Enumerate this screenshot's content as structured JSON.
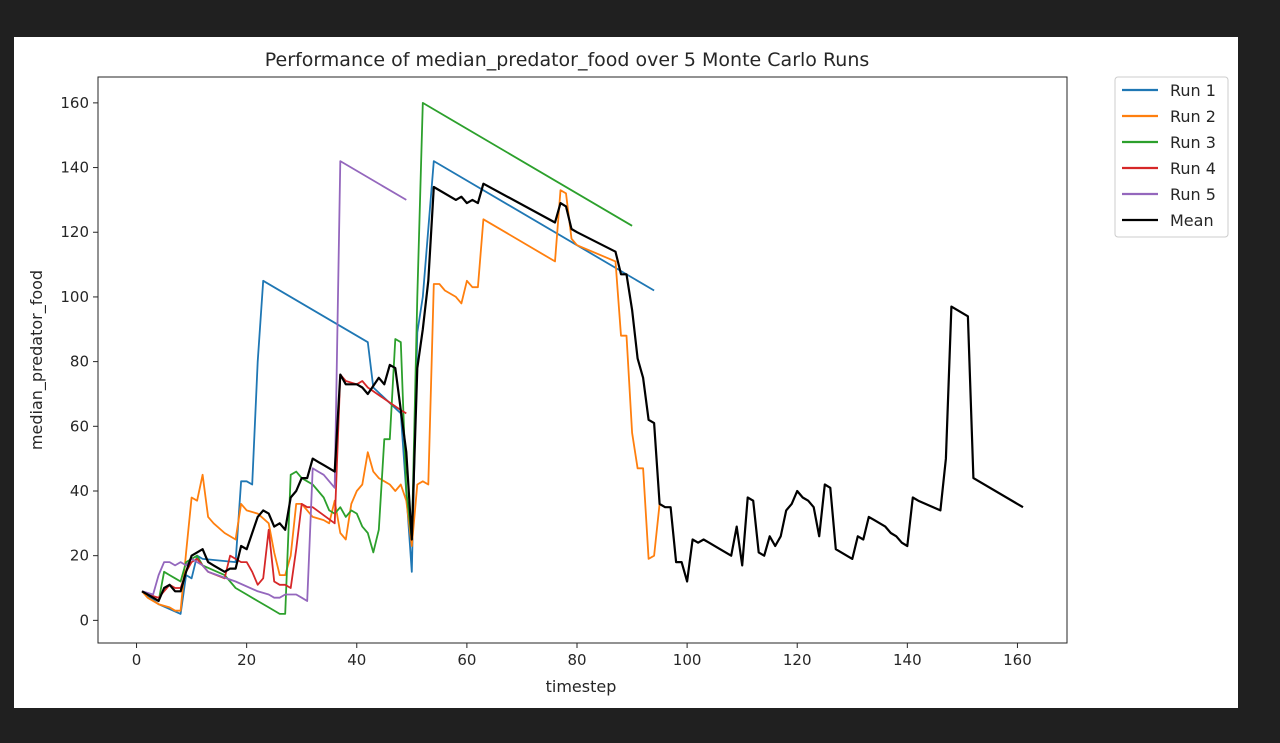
{
  "chart_data": {
    "type": "line",
    "title": "Performance of median_predator_food over 5 Monte Carlo Runs",
    "xlabel": "timestep",
    "ylabel": "median_predator_food",
    "xlim": [
      -7,
      169
    ],
    "ylim": [
      -7,
      168
    ],
    "xticks": [
      0,
      20,
      40,
      60,
      80,
      100,
      120,
      140,
      160
    ],
    "yticks": [
      0,
      20,
      40,
      60,
      80,
      100,
      120,
      140,
      160
    ],
    "legend_position": "outside-top-right",
    "series": [
      {
        "name": "Run 1",
        "color": "#1f77b4",
        "x": [
          1,
          4,
          8,
          9,
          10,
          11,
          12,
          18,
          19,
          20,
          21,
          22,
          23,
          42,
          43,
          48,
          50,
          51,
          52,
          54,
          94
        ],
        "y": [
          9,
          5,
          2,
          14,
          13,
          20,
          19,
          18,
          43,
          43,
          42,
          80,
          105,
          86,
          72,
          64,
          15,
          89,
          100,
          142,
          102
        ]
      },
      {
        "name": "Run 2",
        "color": "#ff7f0e",
        "x": [
          1,
          2,
          4,
          6,
          7,
          8,
          9,
          10,
          11,
          12,
          13,
          14,
          16,
          18,
          19,
          20,
          22,
          24,
          25,
          26,
          27,
          28,
          29,
          30,
          32,
          34,
          35,
          36,
          37,
          38,
          39,
          40,
          41,
          42,
          43,
          44,
          45,
          46,
          47,
          48,
          49,
          50,
          51,
          52,
          53,
          54,
          55,
          56,
          58,
          59,
          60,
          61,
          62,
          63,
          76,
          77,
          78,
          79,
          80,
          87,
          88,
          89,
          90,
          91,
          92,
          93,
          94,
          95
        ],
        "y": [
          9,
          7,
          5,
          4,
          3,
          3,
          21,
          38,
          37,
          45,
          32,
          30,
          27,
          25,
          36,
          34,
          33,
          30,
          21,
          14,
          14,
          20,
          36,
          36,
          32,
          31,
          30,
          37,
          27,
          25,
          36,
          40,
          42,
          52,
          46,
          44,
          43,
          42,
          40,
          42,
          37,
          23,
          42,
          43,
          42,
          104,
          104,
          102,
          100,
          98,
          105,
          103,
          103,
          124,
          111,
          133,
          132,
          118,
          116,
          111,
          88,
          88,
          58,
          47,
          47,
          19,
          20,
          36
        ]
      },
      {
        "name": "Run 3",
        "color": "#2ca02c",
        "x": [
          1,
          3,
          4,
          5,
          6,
          7,
          8,
          9,
          10,
          11,
          12,
          16,
          17,
          18,
          20,
          22,
          24,
          26,
          27,
          28,
          29,
          30,
          31,
          32,
          33,
          34,
          35,
          36,
          37,
          38,
          39,
          40,
          41,
          42,
          43,
          44,
          45,
          46,
          47,
          48,
          49,
          50,
          51,
          52,
          90
        ],
        "y": [
          9,
          7,
          6,
          15,
          14,
          13,
          12,
          18,
          19,
          20,
          17,
          14,
          12,
          10,
          8,
          6,
          4,
          2,
          2,
          45,
          46,
          44,
          43,
          42,
          40,
          38,
          34,
          33,
          35,
          32,
          34,
          33,
          29,
          27,
          21,
          28,
          56,
          56,
          87,
          86,
          40,
          25,
          100,
          160,
          122
        ]
      },
      {
        "name": "Run 4",
        "color": "#d62728",
        "x": [
          1,
          2,
          4,
          6,
          7,
          8,
          9,
          10,
          11,
          12,
          13,
          16,
          17,
          18,
          19,
          20,
          21,
          22,
          23,
          24,
          25,
          26,
          27,
          28,
          29,
          30,
          31,
          32,
          36,
          37,
          38,
          40,
          41,
          42,
          48,
          49
        ],
        "y": [
          9,
          8,
          7,
          11,
          10,
          10,
          15,
          18,
          19,
          17,
          15,
          13,
          20,
          19,
          18,
          18,
          15,
          11,
          13,
          28,
          12,
          11,
          11,
          10,
          22,
          36,
          35,
          35,
          30,
          76,
          74,
          73,
          74,
          72,
          65,
          64
        ]
      },
      {
        "name": "Run 5",
        "color": "#9467bd",
        "x": [
          1,
          3,
          4,
          5,
          6,
          7,
          8,
          9,
          10,
          11,
          12,
          13,
          18,
          22,
          24,
          25,
          26,
          27,
          28,
          29,
          30,
          31,
          32,
          33,
          34,
          35,
          36,
          37,
          49
        ],
        "y": [
          9,
          8,
          14,
          18,
          18,
          17,
          18,
          17,
          19,
          18,
          17,
          15,
          12,
          9,
          8,
          7,
          7,
          8,
          8,
          8,
          7,
          6,
          47,
          46,
          45,
          43,
          41,
          142,
          130
        ]
      },
      {
        "name": "Mean",
        "color": "#000000",
        "x": [
          1,
          2,
          3,
          4,
          5,
          6,
          7,
          8,
          9,
          10,
          11,
          12,
          13,
          14,
          16,
          17,
          18,
          19,
          20,
          21,
          22,
          23,
          24,
          25,
          26,
          27,
          28,
          29,
          30,
          31,
          32,
          33,
          34,
          35,
          36,
          37,
          38,
          40,
          41,
          42,
          44,
          45,
          46,
          47,
          48,
          49,
          50,
          51,
          52,
          53,
          54,
          58,
          59,
          60,
          61,
          62,
          63,
          76,
          77,
          78,
          79,
          80,
          87,
          88,
          89,
          90,
          91,
          92,
          93,
          94,
          95,
          96,
          97,
          98,
          99,
          100,
          101,
          102,
          103,
          104,
          106,
          108,
          109,
          110,
          111,
          112,
          113,
          114,
          115,
          116,
          117,
          118,
          119,
          120,
          121,
          122,
          123,
          124,
          125,
          126,
          127,
          128,
          129,
          130,
          131,
          132,
          133,
          134,
          135,
          136,
          137,
          138,
          139,
          140,
          141,
          142,
          146,
          147,
          148,
          151,
          152,
          161
        ],
        "y": [
          9,
          8,
          7,
          6,
          10,
          11,
          9,
          9,
          15,
          20,
          21,
          22,
          18,
          17,
          15,
          16,
          16,
          23,
          22,
          27,
          32,
          34,
          33,
          29,
          30,
          28,
          38,
          40,
          44,
          44,
          50,
          49,
          48,
          47,
          46,
          76,
          73,
          73,
          72,
          70,
          75,
          73,
          79,
          78,
          65,
          52,
          25,
          78,
          90,
          105,
          134,
          130,
          131,
          129,
          130,
          129,
          135,
          123,
          129,
          128,
          121,
          120,
          114,
          107,
          107,
          96,
          81,
          75,
          62,
          61,
          36,
          35,
          35,
          18,
          18,
          12,
          25,
          24,
          25,
          24,
          22,
          20,
          29,
          17,
          38,
          37,
          21,
          20,
          26,
          23,
          26,
          34,
          36,
          40,
          38,
          37,
          35,
          26,
          42,
          41,
          22,
          21,
          20,
          19,
          26,
          25,
          32,
          31,
          30,
          29,
          27,
          26,
          24,
          23,
          38,
          37,
          34,
          50,
          97,
          94,
          44,
          35
        ]
      }
    ]
  }
}
